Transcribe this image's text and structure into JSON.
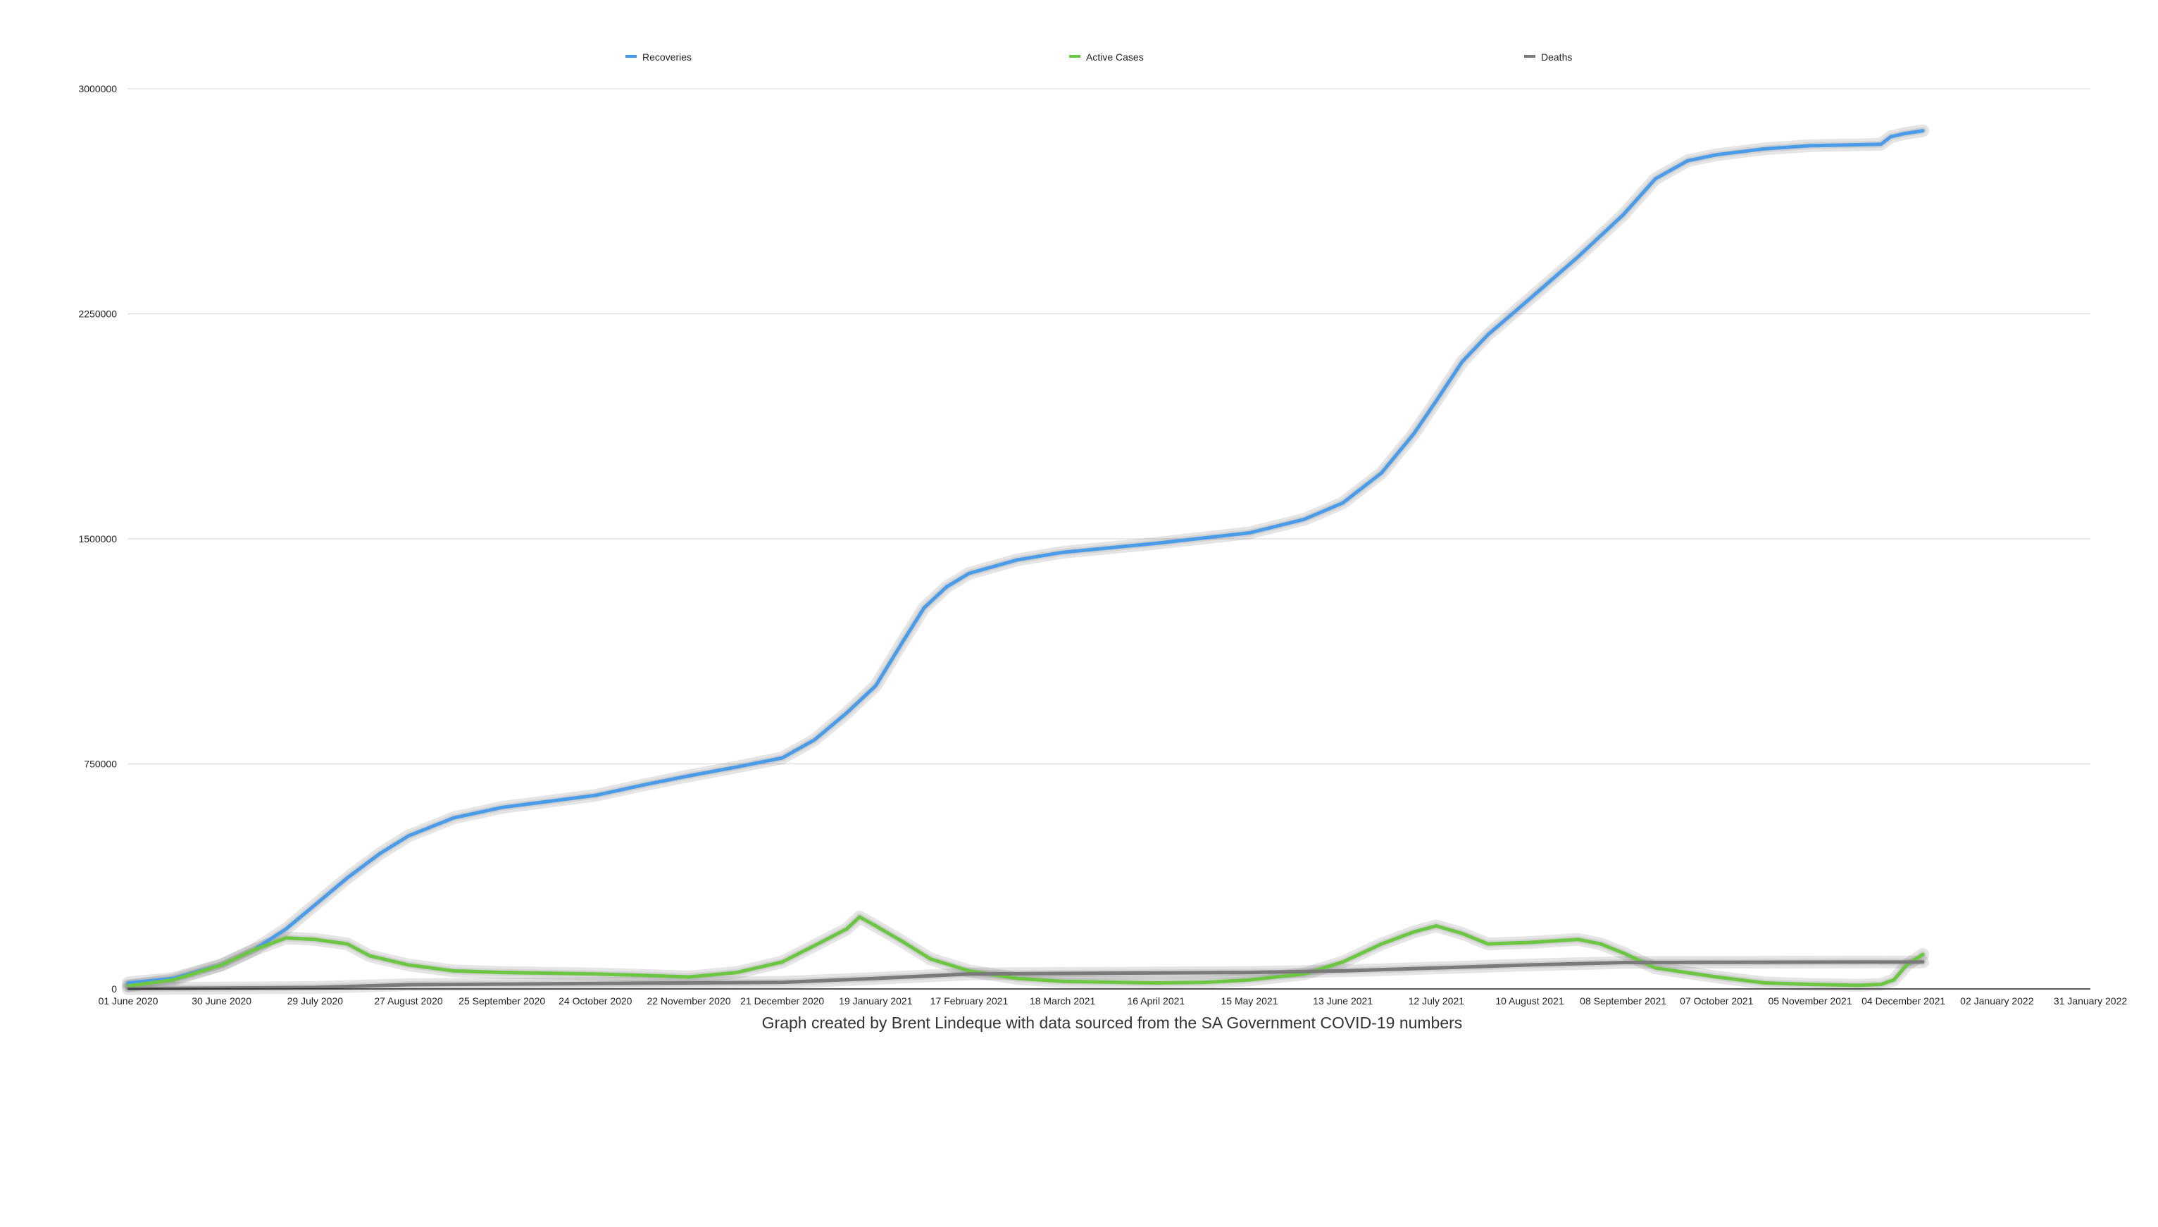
{
  "chart_data": {
    "type": "line",
    "title": "",
    "xlabel": "",
    "ylabel": "",
    "ylim": [
      0,
      3000000
    ],
    "yticks": [
      0,
      750000,
      1500000,
      2250000,
      3000000
    ],
    "ytick_labels": [
      "0",
      "750000",
      "1500000",
      "2250000",
      "3000000"
    ],
    "xlim": [
      "2020-06-01",
      "2022-01-31"
    ],
    "xtick_labels": [
      "01 June 2020",
      "30 June 2020",
      "29 July 2020",
      "27 August 2020",
      "25 September 2020",
      "24 October 2020",
      "22 November 2020",
      "21 December 2020",
      "19 January 2021",
      "17 February 2021",
      "18 March 2021",
      "16 April 2021",
      "15 May 2021",
      "13 June 2021",
      "12 July 2021",
      "10 August 2021",
      "08 September 2021",
      "07 October 2021",
      "05 November 2021",
      "04 December 2021",
      "02 January 2022",
      "31 January 2022"
    ],
    "grid": true,
    "legend_position": "top",
    "series": [
      {
        "name": "Recoveries",
        "color": "#4a9be8",
        "points": [
          [
            "2020-06-01",
            20000
          ],
          [
            "2020-06-15",
            35000
          ],
          [
            "2020-06-30",
            80000
          ],
          [
            "2020-07-10",
            130000
          ],
          [
            "2020-07-20",
            200000
          ],
          [
            "2020-07-29",
            280000
          ],
          [
            "2020-08-08",
            370000
          ],
          [
            "2020-08-18",
            450000
          ],
          [
            "2020-08-27",
            510000
          ],
          [
            "2020-09-10",
            570000
          ],
          [
            "2020-09-25",
            605000
          ],
          [
            "2020-10-24",
            645000
          ],
          [
            "2020-11-08",
            680000
          ],
          [
            "2020-11-22",
            710000
          ],
          [
            "2020-12-07",
            740000
          ],
          [
            "2020-12-21",
            770000
          ],
          [
            "2020-12-31",
            830000
          ],
          [
            "2021-01-10",
            920000
          ],
          [
            "2021-01-19",
            1010000
          ],
          [
            "2021-01-27",
            1150000
          ],
          [
            "2021-02-03",
            1270000
          ],
          [
            "2021-02-10",
            1340000
          ],
          [
            "2021-02-17",
            1385000
          ],
          [
            "2021-03-04",
            1430000
          ],
          [
            "2021-03-18",
            1455000
          ],
          [
            "2021-04-16",
            1485000
          ],
          [
            "2021-05-15",
            1520000
          ],
          [
            "2021-06-01",
            1565000
          ],
          [
            "2021-06-13",
            1620000
          ],
          [
            "2021-06-25",
            1720000
          ],
          [
            "2021-07-05",
            1850000
          ],
          [
            "2021-07-12",
            1960000
          ],
          [
            "2021-07-20",
            2090000
          ],
          [
            "2021-07-28",
            2180000
          ],
          [
            "2021-08-10",
            2300000
          ],
          [
            "2021-08-25",
            2440000
          ],
          [
            "2021-09-08",
            2580000
          ],
          [
            "2021-09-18",
            2700000
          ],
          [
            "2021-09-28",
            2760000
          ],
          [
            "2021-10-07",
            2780000
          ],
          [
            "2021-10-22",
            2800000
          ],
          [
            "2021-11-05",
            2810000
          ],
          [
            "2021-11-27",
            2815000
          ],
          [
            "2021-11-30",
            2840000
          ],
          [
            "2021-12-04",
            2850000
          ],
          [
            "2021-12-10",
            2860000
          ]
        ]
      },
      {
        "name": "Active Cases",
        "color": "#6cc644",
        "points": [
          [
            "2020-06-01",
            10000
          ],
          [
            "2020-06-15",
            30000
          ],
          [
            "2020-06-30",
            80000
          ],
          [
            "2020-07-10",
            130000
          ],
          [
            "2020-07-20",
            170000
          ],
          [
            "2020-07-29",
            165000
          ],
          [
            "2020-08-08",
            150000
          ],
          [
            "2020-08-15",
            110000
          ],
          [
            "2020-08-27",
            80000
          ],
          [
            "2020-09-10",
            60000
          ],
          [
            "2020-09-25",
            55000
          ],
          [
            "2020-10-24",
            50000
          ],
          [
            "2020-11-08",
            45000
          ],
          [
            "2020-11-22",
            40000
          ],
          [
            "2020-12-07",
            55000
          ],
          [
            "2020-12-21",
            90000
          ],
          [
            "2021-01-01",
            150000
          ],
          [
            "2021-01-10",
            200000
          ],
          [
            "2021-01-14",
            240000
          ],
          [
            "2021-01-19",
            210000
          ],
          [
            "2021-01-27",
            160000
          ],
          [
            "2021-02-05",
            100000
          ],
          [
            "2021-02-17",
            60000
          ],
          [
            "2021-03-04",
            35000
          ],
          [
            "2021-03-18",
            25000
          ],
          [
            "2021-04-16",
            20000
          ],
          [
            "2021-05-01",
            22000
          ],
          [
            "2021-05-15",
            30000
          ],
          [
            "2021-06-01",
            50000
          ],
          [
            "2021-06-13",
            90000
          ],
          [
            "2021-06-25",
            150000
          ],
          [
            "2021-07-05",
            190000
          ],
          [
            "2021-07-12",
            210000
          ],
          [
            "2021-07-20",
            185000
          ],
          [
            "2021-07-28",
            150000
          ],
          [
            "2021-08-10",
            155000
          ],
          [
            "2021-08-25",
            165000
          ],
          [
            "2021-09-01",
            150000
          ],
          [
            "2021-09-08",
            120000
          ],
          [
            "2021-09-18",
            70000
          ],
          [
            "2021-10-07",
            40000
          ],
          [
            "2021-10-22",
            20000
          ],
          [
            "2021-11-05",
            15000
          ],
          [
            "2021-11-20",
            12000
          ],
          [
            "2021-11-27",
            15000
          ],
          [
            "2021-12-01",
            30000
          ],
          [
            "2021-12-05",
            80000
          ],
          [
            "2021-12-10",
            115000
          ]
        ]
      },
      {
        "name": "Deaths",
        "color": "#7a7a7a",
        "points": [
          [
            "2020-06-01",
            1000
          ],
          [
            "2020-07-29",
            5000
          ],
          [
            "2020-08-27",
            14000
          ],
          [
            "2020-12-21",
            22000
          ],
          [
            "2021-01-19",
            35000
          ],
          [
            "2021-02-17",
            50000
          ],
          [
            "2021-05-15",
            55000
          ],
          [
            "2021-06-13",
            60000
          ],
          [
            "2021-07-12",
            70000
          ],
          [
            "2021-08-10",
            80000
          ],
          [
            "2021-09-08",
            88000
          ],
          [
            "2021-10-22",
            89000
          ],
          [
            "2021-12-10",
            90000
          ]
        ]
      }
    ],
    "annotations": [
      "Graph created by Brent Lindeque with data sourced from the SA Government COVID-19 numbers"
    ]
  }
}
